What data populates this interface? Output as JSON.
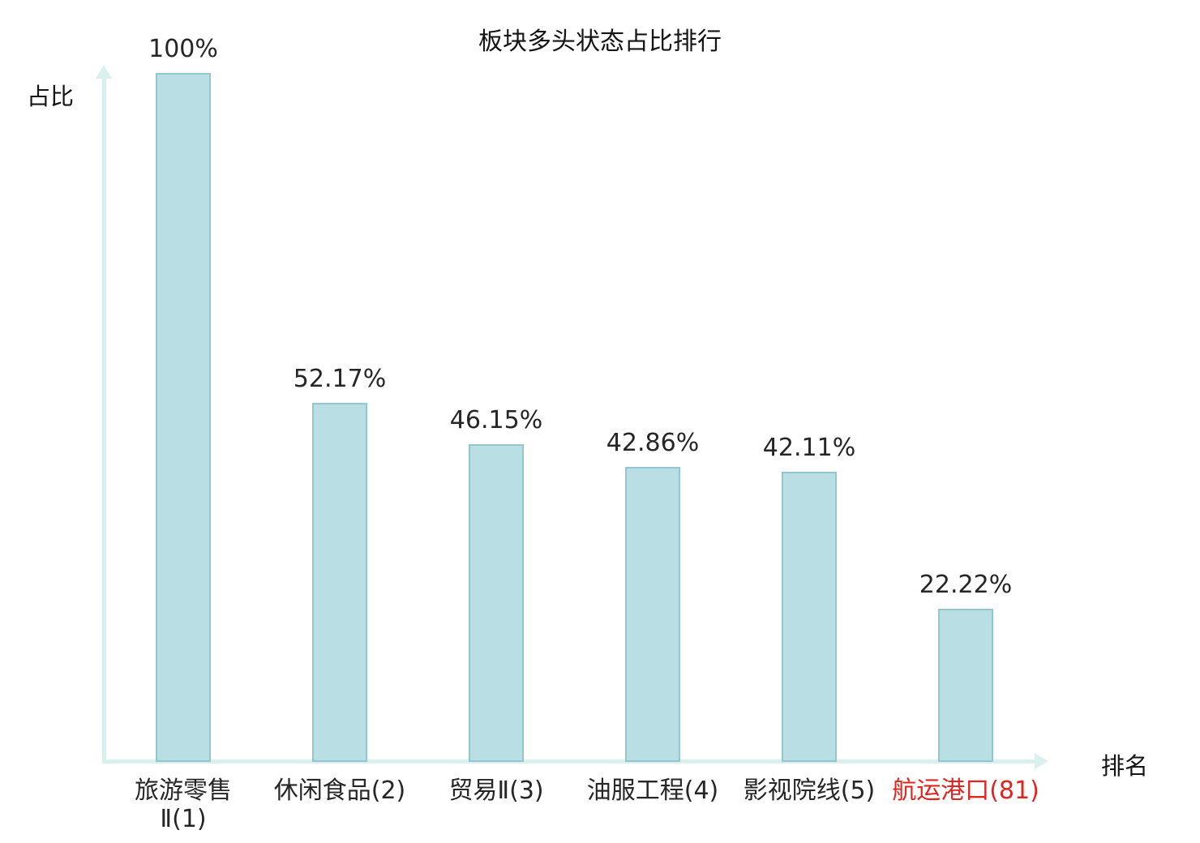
{
  "chart_data": {
    "type": "bar",
    "title": "板块多头状态占比排行",
    "xlabel": "排名",
    "ylabel": "占比",
    "categories": [
      "旅游零售\nⅡ(1)",
      "休闲食品(2)",
      "贸易Ⅱ(3)",
      "油服工程(4)",
      "影视院线(5)",
      "航运港口(81)"
    ],
    "values": [
      100,
      52.17,
      46.15,
      42.86,
      42.11,
      22.22
    ],
    "value_labels": [
      "100%",
      "52.17%",
      "46.15%",
      "42.86%",
      "42.11%",
      "22.22%"
    ],
    "ylim": [
      0,
      100
    ],
    "grid": false,
    "legend": false,
    "highlight_index": 5,
    "highlight_color": "#e02420",
    "bar_fill": "#b9dfe4",
    "bar_border": "#93c7cf",
    "axis_color": "#d9f0ec",
    "text_color": "#262626"
  }
}
